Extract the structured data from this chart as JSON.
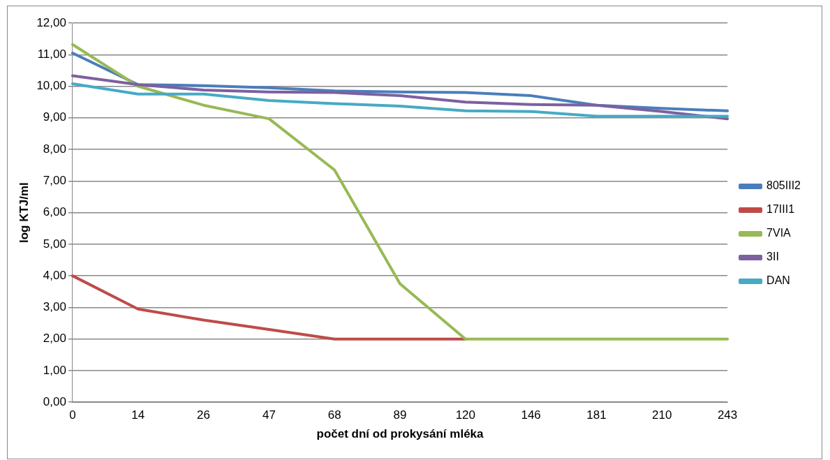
{
  "chart_data": {
    "type": "line",
    "xlabel": "počet dní od prokysání mléka",
    "ylabel": "log KTJ/ml",
    "categories": [
      "0",
      "14",
      "26",
      "47",
      "68",
      "89",
      "120",
      "146",
      "181",
      "210",
      "243"
    ],
    "ylim": [
      0,
      12
    ],
    "yticks": [
      {
        "value": 0,
        "label": "0,00"
      },
      {
        "value": 1,
        "label": "1,00"
      },
      {
        "value": 2,
        "label": "2,00"
      },
      {
        "value": 3,
        "label": "3,00"
      },
      {
        "value": 4,
        "label": "4,00"
      },
      {
        "value": 5,
        "label": "5,00"
      },
      {
        "value": 6,
        "label": "6,00"
      },
      {
        "value": 7,
        "label": "7,00"
      },
      {
        "value": 8,
        "label": "8,00"
      },
      {
        "value": 9,
        "label": "9,00"
      },
      {
        "value": 10,
        "label": "10,00"
      },
      {
        "value": 11,
        "label": "11,00"
      },
      {
        "value": 12,
        "label": "12,00"
      }
    ],
    "grid": "y",
    "legend": "right",
    "marker": "none",
    "line_style": "solid",
    "series": [
      {
        "name": "805III2",
        "color": "#4a7ebb",
        "values": [
          11.05,
          10.05,
          10.02,
          9.95,
          9.85,
          9.82,
          9.8,
          9.7,
          9.4,
          9.3,
          9.22
        ]
      },
      {
        "name": "17III1",
        "color": "#be4b48",
        "values": [
          4.0,
          2.95,
          2.6,
          2.3,
          2.0,
          2.0,
          2.0,
          null,
          null,
          null,
          null
        ]
      },
      {
        "name": "7VIA",
        "color": "#98b954",
        "values": [
          11.32,
          10.0,
          9.4,
          8.97,
          7.35,
          3.75,
          2.0,
          2.0,
          2.0,
          2.0,
          2.0
        ]
      },
      {
        "name": "3II",
        "color": "#7d60a0",
        "values": [
          10.33,
          10.05,
          9.88,
          9.82,
          9.8,
          9.7,
          9.5,
          9.42,
          9.4,
          9.2,
          8.97
        ]
      },
      {
        "name": "DAN",
        "color": "#46aac5",
        "values": [
          10.08,
          9.75,
          9.75,
          9.55,
          9.45,
          9.37,
          9.22,
          9.2,
          9.05,
          9.05,
          9.05
        ]
      }
    ]
  }
}
